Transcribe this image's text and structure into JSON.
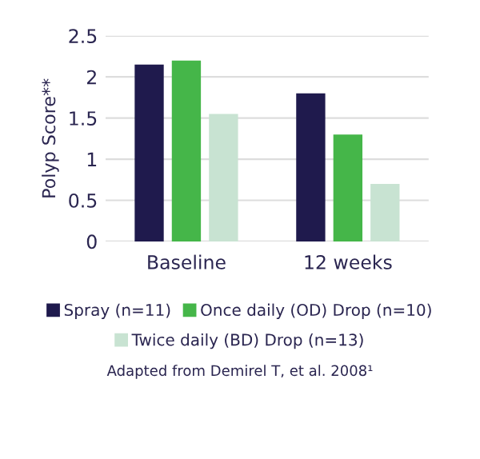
{
  "chart_data": {
    "type": "bar",
    "ylabel": "Polyp Score**",
    "categories": [
      "Baseline",
      "12 weeks"
    ],
    "series": [
      {
        "name": "Spray (n=11)",
        "color": "#1f1a4d",
        "values": [
          2.15,
          1.8
        ]
      },
      {
        "name": "Once daily (OD) Drop (n=10)",
        "color": "#45b649",
        "values": [
          2.2,
          1.3
        ]
      },
      {
        "name": "Twice daily (BD) Drop (n=13)",
        "color": "#c8e3d2",
        "values": [
          1.55,
          0.7
        ]
      }
    ],
    "ylim": [
      0,
      2.5
    ],
    "yticks": [
      0,
      0.5,
      1,
      1.5,
      2,
      2.5
    ],
    "grid": "y",
    "legend": "bottom",
    "annotations": [
      "Adapted from Demirel T, et al. 2008¹"
    ]
  }
}
